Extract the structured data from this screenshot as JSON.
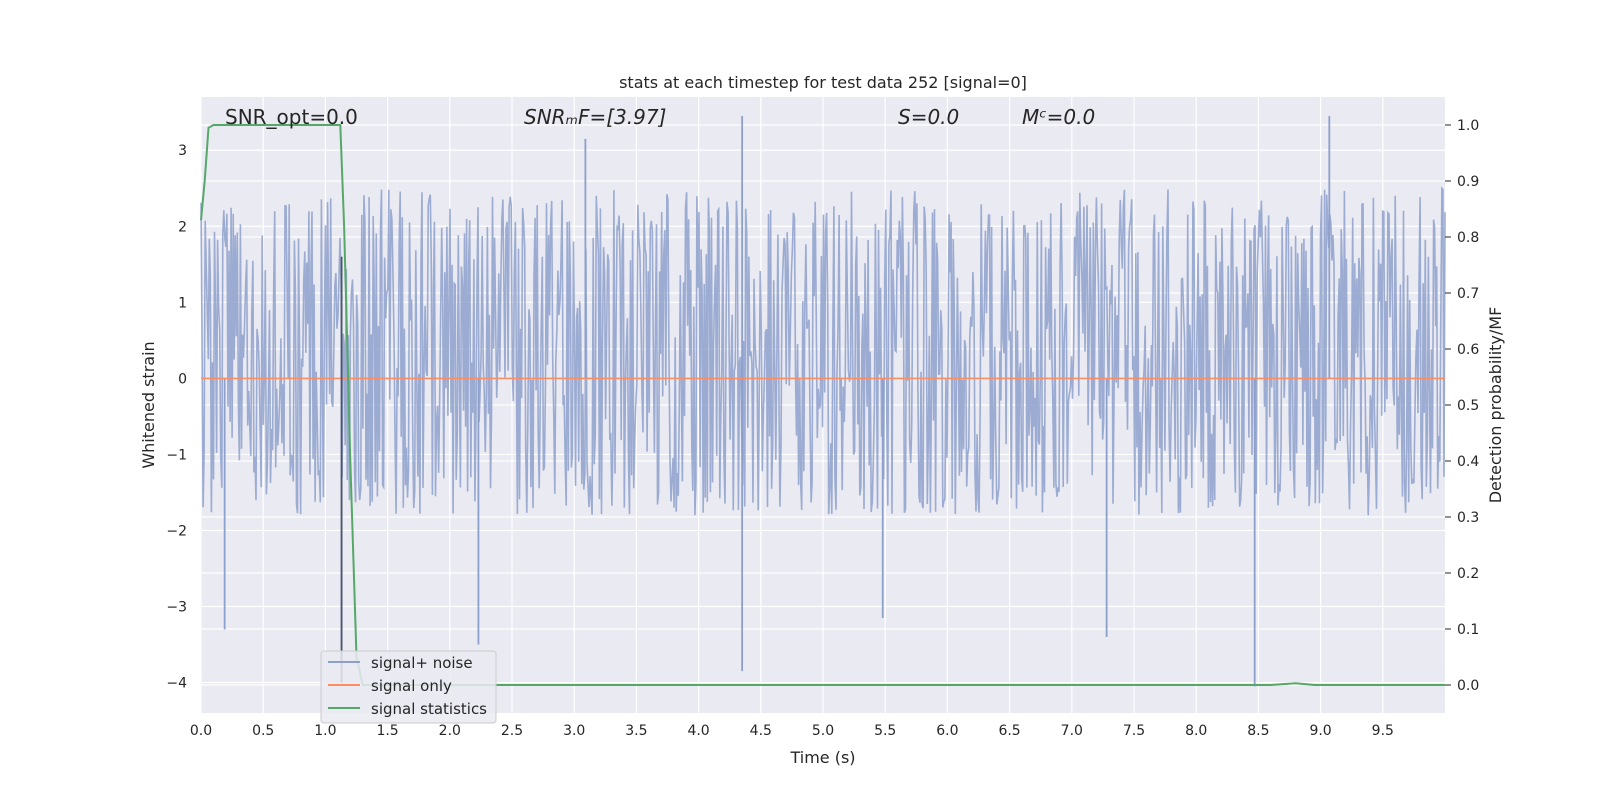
{
  "chart_data": {
    "type": "line",
    "title": "stats at each timestep for test data 252 [signal=0]",
    "xlabel": "Time (s)",
    "ylabel": "Whitened strain",
    "y2label": "Detection probability/MF",
    "xlim": [
      0,
      10
    ],
    "ylim": [
      -4.4,
      3.7
    ],
    "y2lim": [
      -0.05,
      1.05
    ],
    "x_ticks": [
      "0.0",
      "0.5",
      "1.0",
      "1.5",
      "2.0",
      "2.5",
      "3.0",
      "3.5",
      "4.0",
      "4.5",
      "5.0",
      "5.5",
      "6.0",
      "6.5",
      "7.0",
      "7.5",
      "8.0",
      "8.5",
      "9.0",
      "9.5"
    ],
    "y_ticks": [
      "3",
      "2",
      "1",
      "0",
      "−1",
      "−2",
      "−3",
      "−4"
    ],
    "y2_ticks": [
      "1.0",
      "0.9",
      "0.8",
      "0.7",
      "0.6",
      "0.5",
      "0.4",
      "0.3",
      "0.2",
      "0.1",
      "0.0"
    ],
    "grid": true,
    "legend_position": "lower-left",
    "annotations": {
      "snr_opt": "SNR_opt=0.0",
      "snr_mf": "SNRₘF=[3.97]",
      "s_value": "S=0.0",
      "mc_value": "Mᶜ=0.0"
    },
    "marker_line_x": 1.13,
    "series": [
      {
        "name": "signal+ noise",
        "axis": "left",
        "color": "#8da0cb",
        "description_shape": "dense noise, approx. uniform band roughly -1.8 to 2.4 with spikes",
        "envelope_upper": [
          2.4,
          2.5,
          2.4,
          2.5,
          2.4,
          2.5,
          2.4,
          2.5,
          2.4,
          2.5
        ],
        "envelope_lower": [
          -1.8,
          -1.8,
          -1.8,
          -1.8,
          -1.8,
          -1.8,
          -1.8,
          -1.8,
          -1.8,
          -1.8
        ],
        "spikes": [
          {
            "x": 0.19,
            "y": -3.3
          },
          {
            "x": 1.13,
            "y": 1.6
          },
          {
            "x": 1.13,
            "y": -4.0
          },
          {
            "x": 2.23,
            "y": -3.5
          },
          {
            "x": 3.09,
            "y": 3.15
          },
          {
            "x": 4.35,
            "y": 3.45
          },
          {
            "x": 4.35,
            "y": -3.85
          },
          {
            "x": 5.48,
            "y": -3.15
          },
          {
            "x": 7.28,
            "y": -3.4
          },
          {
            "x": 8.47,
            "y": -4.05
          },
          {
            "x": 9.07,
            "y": 3.45
          }
        ]
      },
      {
        "name": "signal only",
        "axis": "left",
        "color": "#fc8d62",
        "x": [
          0,
          10
        ],
        "y": [
          0,
          0
        ]
      },
      {
        "name": "signal statistics",
        "axis": "right",
        "color": "#55a868",
        "x": [
          0.0,
          0.03,
          0.06,
          0.1,
          0.5,
          1.0,
          1.12,
          1.15,
          1.2,
          1.25,
          1.3,
          2.0,
          5.0,
          8.6,
          8.8,
          8.95,
          10.0
        ],
        "y": [
          0.83,
          0.9,
          0.995,
          1.0,
          1.0,
          1.0,
          1.0,
          0.82,
          0.4,
          0.05,
          0.0,
          0.0,
          0.0,
          0.0,
          0.003,
          0.0,
          0.0
        ]
      }
    ]
  }
}
